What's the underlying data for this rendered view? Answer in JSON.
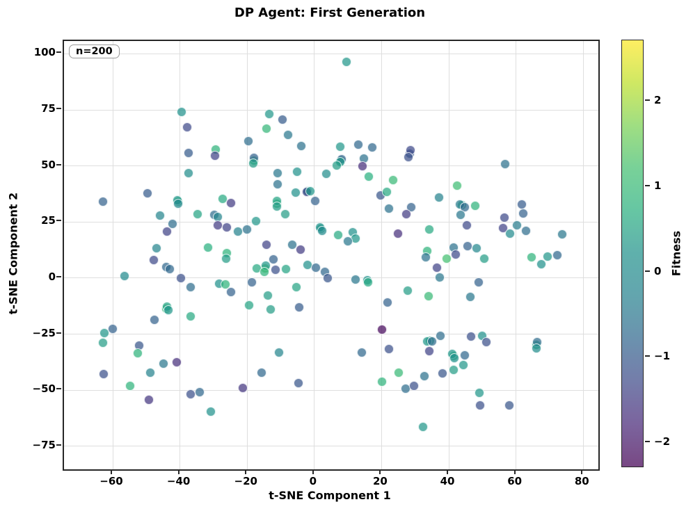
{
  "chart_data": {
    "type": "scatter",
    "title": "DP Agent: First Generation",
    "xlabel": "t-SNE Component 1",
    "ylabel": "t-SNE Component 2",
    "annotation": "n=200",
    "n_points": 200,
    "xlim": [
      -74.5,
      84.5
    ],
    "ylim": [
      -85.3,
      105.7
    ],
    "xticks": [
      -60,
      -40,
      -20,
      0,
      20,
      40,
      60,
      80
    ],
    "yticks": [
      100,
      75,
      50,
      25,
      0,
      -25,
      -50,
      -75
    ],
    "grid": true,
    "legend_position": "none",
    "colorbar": {
      "label": "Fitness",
      "vmin": -2.3,
      "vmax": 2.71,
      "ticks": [
        2,
        1,
        0,
        -1,
        -2
      ],
      "colormap": "viridis",
      "alpha": 0.72
    },
    "points": [
      [
        -40.6,
        33.9,
        0.9
      ],
      [
        8.0,
        52.2,
        0.8
      ],
      [
        -11.1,
        33.1,
        0.9
      ],
      [
        -2.0,
        38.6,
        0.2
      ],
      [
        2.0,
        21.9,
        0.5
      ],
      [
        41.4,
        -34.8,
        0.8
      ],
      [
        66.2,
        -29.9,
        0.6
      ],
      [
        34.4,
        -28.0,
        0.5
      ],
      [
        -14.7,
        4.2,
        1.4
      ],
      [
        -44.0,
        -13.6,
        0.9
      ],
      [
        28.4,
        55.4,
        -1.0
      ],
      [
        -18.0,
        52.4,
        0.8
      ],
      [
        44.0,
        32.4,
        0.6
      ],
      [
        -39.4,
        74.0,
        0.2
      ],
      [
        -37.9,
        67.3,
        -1.3
      ],
      [
        -37.5,
        55.8,
        -1.0
      ],
      [
        -29.4,
        57.2,
        0.8
      ],
      [
        -29.5,
        54.4,
        -1.4
      ],
      [
        -37.4,
        46.7,
        0.1
      ],
      [
        -49.7,
        37.7,
        -1.0
      ],
      [
        -62.8,
        34.1,
        -0.9
      ],
      [
        -40.7,
        34.6,
        0.3
      ],
      [
        -40.5,
        33.0,
        -0.1
      ],
      [
        -27.2,
        35.1,
        0.6
      ],
      [
        -24.8,
        33.3,
        -1.5
      ],
      [
        -34.8,
        28.5,
        0.5
      ],
      [
        -29.8,
        28.1,
        -0.7
      ],
      [
        -28.8,
        27.3,
        -0.2
      ],
      [
        -45.8,
        27.8,
        -0.2
      ],
      [
        -42.1,
        24.2,
        -0.7
      ],
      [
        -43.8,
        20.8,
        -1.4
      ],
      [
        -28.7,
        23.4,
        -1.5
      ],
      [
        -26.1,
        22.6,
        -1.4
      ],
      [
        -22.8,
        20.7,
        -0.3
      ],
      [
        -47.0,
        13.2,
        -0.2
      ],
      [
        -31.5,
        13.5,
        0.7
      ],
      [
        -26.1,
        11.1,
        0.8
      ],
      [
        9.5,
        96.2,
        0.3
      ],
      [
        -13.3,
        73.0,
        0.3
      ],
      [
        -9.4,
        70.7,
        -1.0
      ],
      [
        -14.3,
        66.7,
        0.9
      ],
      [
        -7.7,
        63.8,
        -0.5
      ],
      [
        -19.5,
        61.1,
        -0.7
      ],
      [
        -3.9,
        58.7,
        -0.6
      ],
      [
        7.8,
        58.5,
        0.3
      ],
      [
        13.2,
        59.3,
        -0.8
      ],
      [
        17.3,
        58.1,
        -0.8
      ],
      [
        28.7,
        57.0,
        -1.3
      ],
      [
        28.1,
        53.9,
        -1.2
      ],
      [
        -18.0,
        53.6,
        -0.9
      ],
      [
        -18.1,
        51.0,
        0.4
      ],
      [
        8.2,
        52.8,
        -0.9
      ],
      [
        7.8,
        51.6,
        0.3
      ],
      [
        14.8,
        53.3,
        -0.6
      ],
      [
        14.4,
        49.7,
        -1.7
      ],
      [
        6.7,
        50.2,
        0.4
      ],
      [
        16.2,
        45.2,
        0.7
      ],
      [
        -11.0,
        46.6,
        -0.5
      ],
      [
        -5.1,
        47.3,
        0.2
      ],
      [
        3.6,
        46.3,
        0.1
      ],
      [
        23.5,
        43.5,
        1.0
      ],
      [
        -11.0,
        41.9,
        -0.6
      ],
      [
        -5.6,
        37.9,
        0.2
      ],
      [
        -2.3,
        38.4,
        -1.4
      ],
      [
        -1.1,
        38.8,
        0.3
      ],
      [
        19.8,
        36.8,
        -1.1
      ],
      [
        21.7,
        38.4,
        0.6
      ],
      [
        0.3,
        34.3,
        -0.9
      ],
      [
        -11.1,
        34.3,
        0.5
      ],
      [
        -11.1,
        31.9,
        0.4
      ],
      [
        22.2,
        30.9,
        -0.6
      ],
      [
        28.9,
        31.4,
        -0.9
      ],
      [
        27.3,
        28.3,
        -1.5
      ],
      [
        -8.7,
        28.3,
        0.4
      ],
      [
        -17.3,
        25.3,
        0.3
      ],
      [
        -20.0,
        21.6,
        -0.6
      ],
      [
        1.7,
        22.6,
        0.2
      ],
      [
        2.3,
        21.1,
        0.0
      ],
      [
        7.1,
        19.0,
        0.6
      ],
      [
        11.4,
        20.5,
        0.2
      ],
      [
        12.3,
        17.7,
        0.3
      ],
      [
        10.1,
        16.4,
        -0.5
      ],
      [
        24.9,
        19.8,
        -1.7
      ],
      [
        -14.2,
        14.9,
        -1.4
      ],
      [
        -6.6,
        14.9,
        -0.6
      ],
      [
        -4.1,
        12.5,
        -1.5
      ],
      [
        56.9,
        50.8,
        -0.6
      ],
      [
        42.6,
        41.2,
        1.1
      ],
      [
        37.2,
        35.9,
        -0.3
      ],
      [
        43.3,
        32.9,
        -0.4
      ],
      [
        44.7,
        31.6,
        -0.8
      ],
      [
        47.9,
        32.1,
        0.8
      ],
      [
        43.6,
        28.1,
        -0.5
      ],
      [
        45.5,
        23.4,
        -1.3
      ],
      [
        61.7,
        32.9,
        -1.0
      ],
      [
        62.1,
        28.8,
        -0.9
      ],
      [
        56.6,
        27.0,
        -1.3
      ],
      [
        56.1,
        22.3,
        -1.4
      ],
      [
        60.4,
        23.6,
        -0.4
      ],
      [
        58.2,
        19.8,
        0.0
      ],
      [
        63.0,
        21.1,
        -0.7
      ],
      [
        34.2,
        21.6,
        0.6
      ],
      [
        73.8,
        19.5,
        -0.5
      ],
      [
        41.4,
        13.5,
        -0.6
      ],
      [
        45.7,
        14.3,
        -0.9
      ],
      [
        48.3,
        13.3,
        -0.1
      ],
      [
        -47.8,
        8.0,
        -1.3
      ],
      [
        -44.1,
        4.9,
        -0.8
      ],
      [
        -42.9,
        3.9,
        -0.8
      ],
      [
        -56.4,
        0.8,
        0.0
      ],
      [
        -39.6,
        -0.2,
        -1.2
      ],
      [
        -36.7,
        -4.2,
        -0.7
      ],
      [
        -28.3,
        -2.6,
        0.2
      ],
      [
        -26.4,
        -2.8,
        0.8
      ],
      [
        -24.7,
        -6.2,
        -0.9
      ],
      [
        -26.3,
        8.7,
        0.4
      ],
      [
        -43.9,
        -12.7,
        0.5
      ],
      [
        -43.4,
        -14.5,
        0.3
      ],
      [
        -47.5,
        -18.6,
        -0.9
      ],
      [
        -36.8,
        -17.3,
        0.6
      ],
      [
        -62.4,
        -24.5,
        0.3
      ],
      [
        -59.9,
        -22.7,
        -0.9
      ],
      [
        -62.9,
        -29.0,
        0.4
      ],
      [
        -52.1,
        -30.2,
        -1.1
      ],
      [
        -52.6,
        -33.6,
        0.8
      ],
      [
        -44.9,
        -38.3,
        -0.5
      ],
      [
        -40.9,
        -37.7,
        -1.7
      ],
      [
        -48.7,
        -42.3,
        -0.3
      ],
      [
        -62.6,
        -42.9,
        -1.2
      ],
      [
        -54.7,
        -48.0,
        0.8
      ],
      [
        -49.2,
        -54.3,
        -1.6
      ],
      [
        -36.7,
        -51.9,
        -1.2
      ],
      [
        -34.1,
        -50.9,
        -0.8
      ],
      [
        -30.7,
        -59.5,
        0.2
      ],
      [
        -12.1,
        8.3,
        -0.9
      ],
      [
        -17.1,
        4.4,
        0.6
      ],
      [
        -14.5,
        5.6,
        0.3
      ],
      [
        -14.9,
        2.6,
        0.8
      ],
      [
        -11.6,
        3.6,
        -1.2
      ],
      [
        -8.5,
        3.9,
        0.5
      ],
      [
        -2.1,
        5.7,
        0.2
      ],
      [
        0.4,
        4.7,
        -0.8
      ],
      [
        3.1,
        2.6,
        -0.8
      ],
      [
        4.1,
        0.0,
        -1.1
      ],
      [
        -18.5,
        -2.0,
        -0.9
      ],
      [
        12.3,
        -0.6,
        -0.5
      ],
      [
        15.8,
        -1.0,
        0.2
      ],
      [
        16.0,
        -1.8,
        0.6
      ],
      [
        -5.4,
        -4.2,
        0.5
      ],
      [
        -13.8,
        -7.8,
        0.4
      ],
      [
        -19.3,
        -12.3,
        0.5
      ],
      [
        -13.0,
        -14.2,
        0.4
      ],
      [
        -4.5,
        -13.2,
        -1.0
      ],
      [
        27.8,
        -5.6,
        0.4
      ],
      [
        21.8,
        -11.1,
        -0.9
      ],
      [
        20.1,
        -23.0,
        -2.2
      ],
      [
        -10.4,
        -33.3,
        -0.2
      ],
      [
        14.1,
        -33.3,
        -0.8
      ],
      [
        22.2,
        -31.6,
        -1.2
      ],
      [
        -15.6,
        -42.3,
        -0.8
      ],
      [
        25.1,
        -42.4,
        1.0
      ],
      [
        20.2,
        -46.2,
        0.8
      ],
      [
        -4.7,
        -46.8,
        -1.1
      ],
      [
        27.1,
        -49.3,
        -0.7
      ],
      [
        29.7,
        -48.1,
        -1.2
      ],
      [
        -21.2,
        -49.2,
        -1.6
      ],
      [
        33.7,
        12.0,
        0.8
      ],
      [
        33.2,
        9.3,
        -0.6
      ],
      [
        39.5,
        8.5,
        1.2
      ],
      [
        42.1,
        10.3,
        -1.3
      ],
      [
        36.6,
        4.6,
        -1.4
      ],
      [
        50.6,
        8.5,
        0.4
      ],
      [
        64.7,
        9.1,
        0.8
      ],
      [
        69.5,
        9.4,
        0.3
      ],
      [
        67.6,
        6.0,
        0.2
      ],
      [
        72.4,
        10.2,
        -0.8
      ],
      [
        37.3,
        0.3,
        -0.5
      ],
      [
        34.0,
        -8.2,
        1.0
      ],
      [
        49.0,
        -2.0,
        -0.9
      ],
      [
        46.4,
        -8.5,
        -0.5
      ],
      [
        37.6,
        -25.8,
        -0.7
      ],
      [
        33.7,
        -28.2,
        0.3
      ],
      [
        35.1,
        -28.4,
        -0.7
      ],
      [
        34.2,
        -32.8,
        -1.4
      ],
      [
        46.7,
        -26.1,
        -1.2
      ],
      [
        49.9,
        -25.8,
        0.2
      ],
      [
        51.3,
        -28.5,
        -1.2
      ],
      [
        41.1,
        -33.8,
        0.3
      ],
      [
        41.7,
        -35.7,
        0.2
      ],
      [
        44.7,
        -34.4,
        -0.8
      ],
      [
        44.3,
        -39.0,
        0.3
      ],
      [
        41.4,
        -41.1,
        0.4
      ],
      [
        38.1,
        -42.6,
        -1.1
      ],
      [
        32.7,
        -43.7,
        -0.6
      ],
      [
        66.3,
        -28.7,
        -0.7
      ],
      [
        66.1,
        -31.3,
        0.1
      ],
      [
        49.1,
        -51.4,
        0.3
      ],
      [
        49.3,
        -56.9,
        -1.2
      ],
      [
        58.0,
        -56.9,
        -1.1
      ],
      [
        32.3,
        -66.4,
        0.3
      ]
    ]
  }
}
